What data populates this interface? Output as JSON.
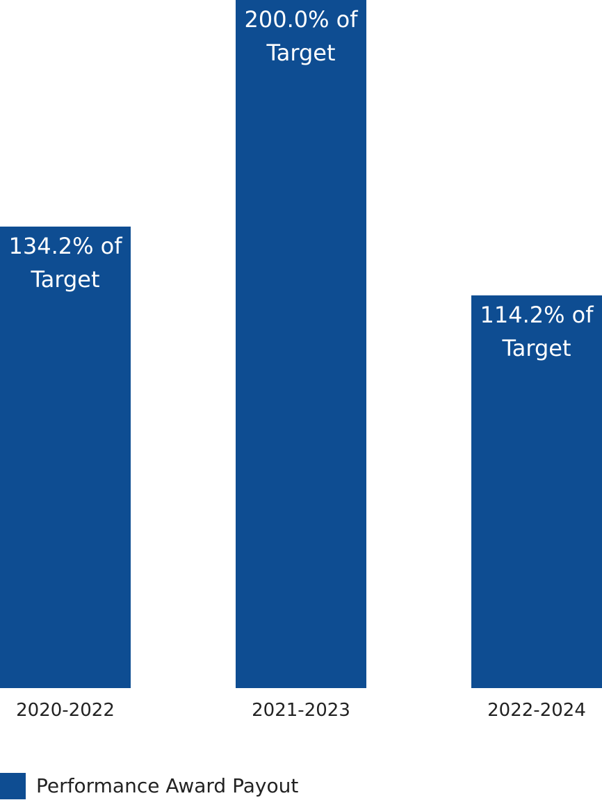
{
  "chart_data": {
    "type": "bar",
    "categories": [
      "2020-2022",
      "2021-2023",
      "2022-2024"
    ],
    "series": [
      {
        "name": "Performance Award Payout",
        "color": "#0e4d92",
        "values": [
          134.2,
          200.0,
          114.2
        ],
        "value_labels": [
          "134.2% of Target",
          "200.0% of Target",
          "114.2% of Target"
        ]
      }
    ]
  }
}
